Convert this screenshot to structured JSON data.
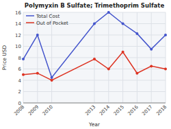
{
  "chart_data": {
    "type": "line",
    "title": "Polymyxin B Sulfate; Trimethoprim Sulfate",
    "x_label": "Year",
    "y_label": "Price USD",
    "x": [
      2008,
      2009,
      2010,
      2013,
      2014,
      2015,
      2016,
      2017,
      2018
    ],
    "series": [
      {
        "name": "Total Cost",
        "color": "#4455cc",
        "values": [
          7.75,
          12.0,
          4.5,
          14.0,
          16.0,
          14.0,
          12.25,
          9.5,
          12.0
        ]
      },
      {
        "name": "Out of Pocket",
        "color": "#dd3322",
        "values": [
          5.0,
          5.25,
          4.0,
          7.75,
          6.0,
          9.0,
          5.25,
          6.5,
          6.0
        ]
      }
    ],
    "xlim": [
      2008,
      2018
    ],
    "xticks": [
      2008,
      2009,
      2010,
      2013,
      2014,
      2015,
      2016,
      2017,
      2018
    ],
    "ylim": [
      0,
      16
    ],
    "yticks": [
      0,
      2,
      4,
      6,
      8,
      10,
      12,
      14,
      16
    ],
    "grid": true,
    "legend": "upper left",
    "marker": "circle"
  }
}
